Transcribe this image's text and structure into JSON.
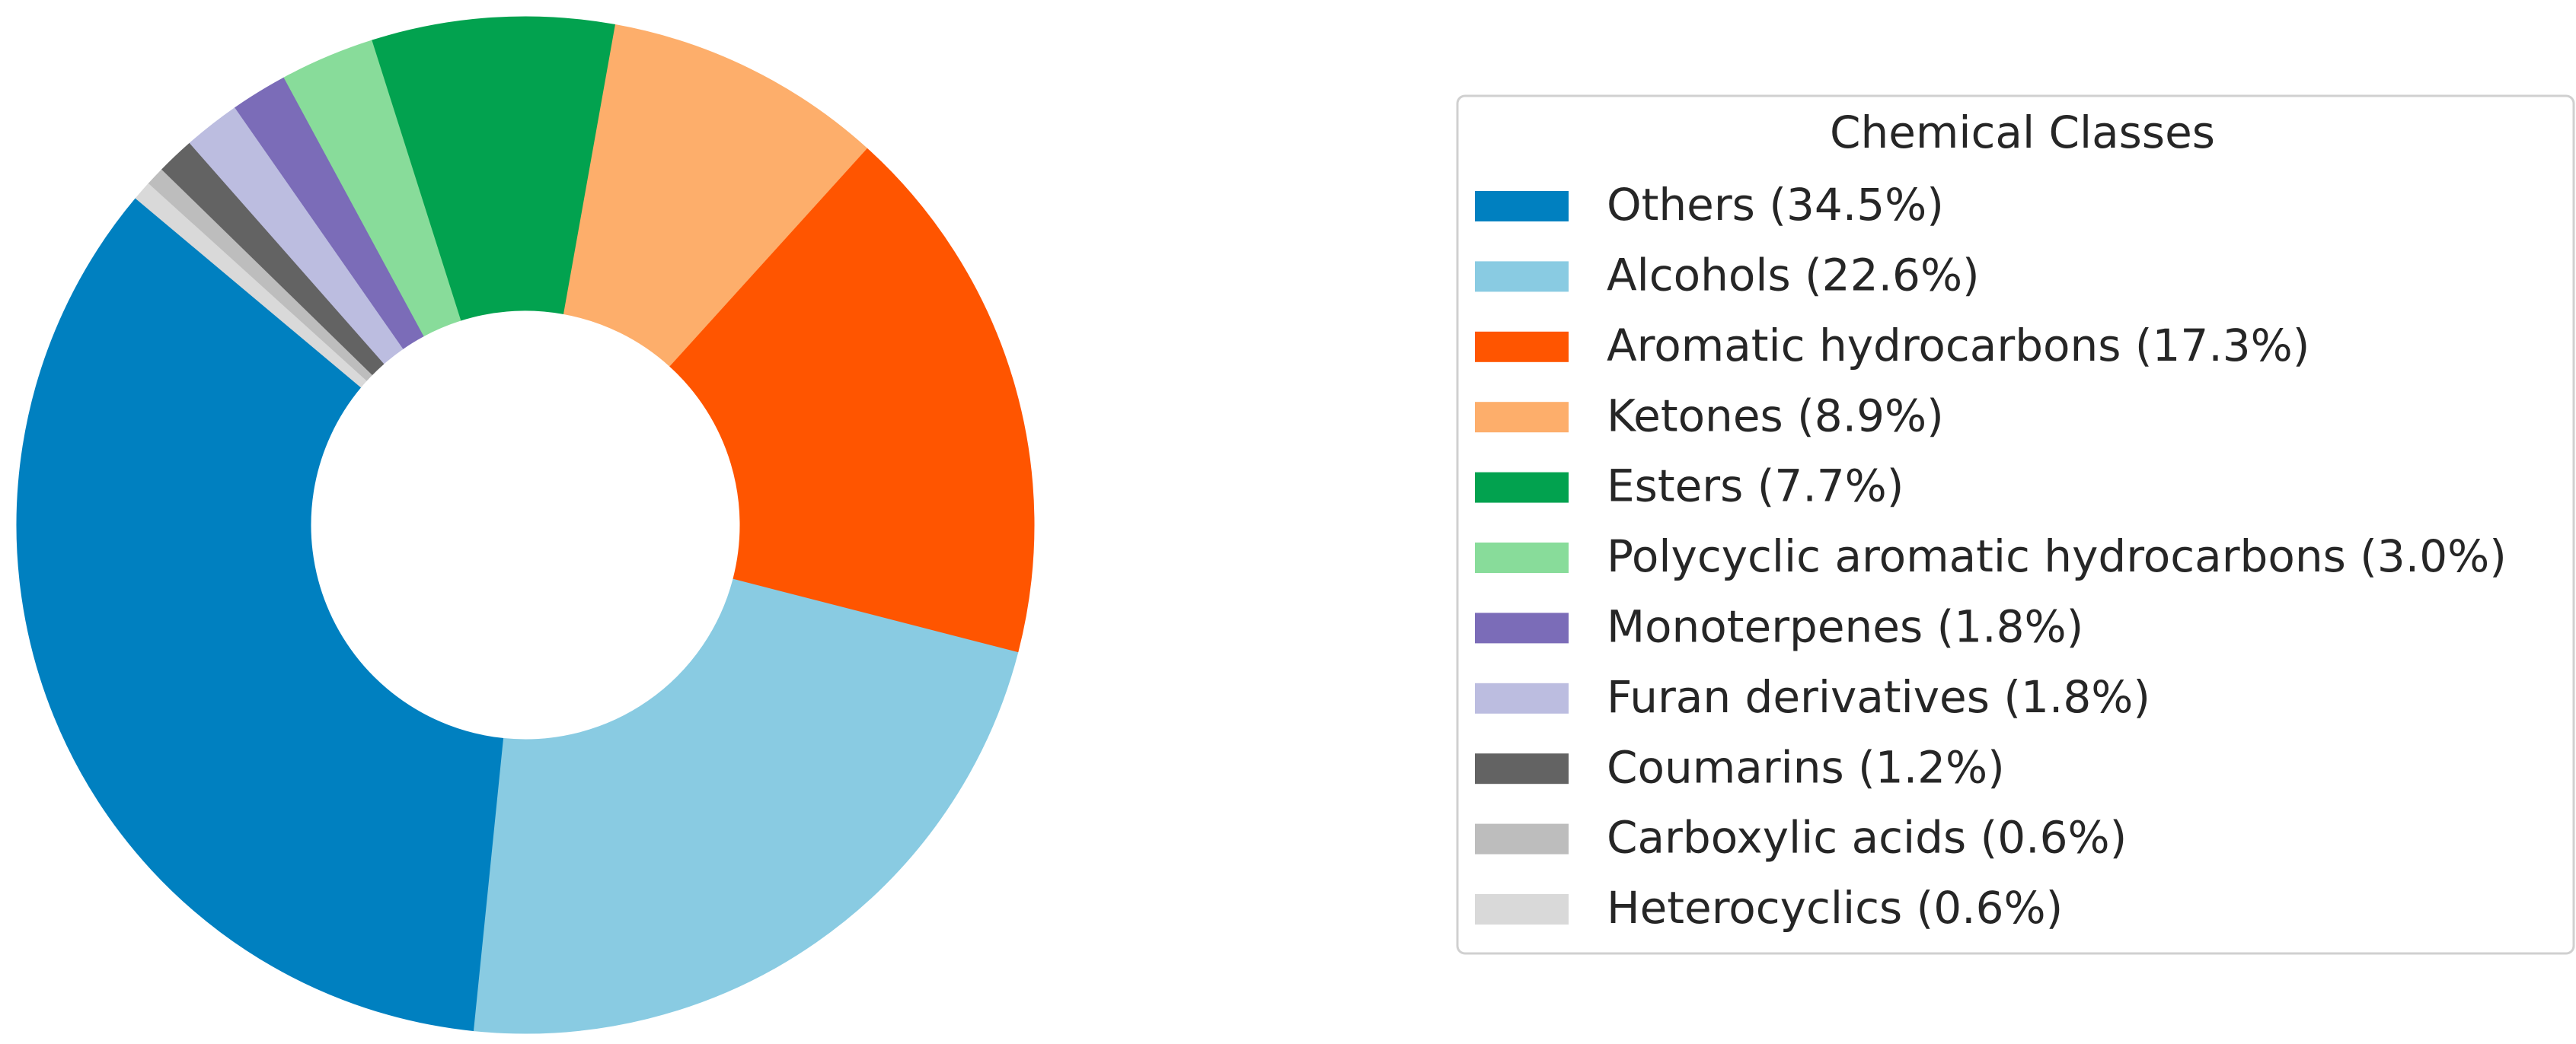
{
  "chart_data": {
    "type": "donut",
    "legend_title": "Chemical Classes",
    "labels": [
      "Others (34.5%)",
      "Alcohols (22.6%)",
      "Aromatic hydrocarbons (17.3%)",
      "Ketones (8.9%)",
      "Esters (7.7%)",
      "Polycyclic aromatic hydrocarbons (3.0%)",
      "Monoterpenes (1.8%)",
      "Furan derivatives (1.8%)",
      "Coumarins (1.2%)",
      "Carboxylic acids (0.6%)",
      "Heterocyclics (0.6%)"
    ],
    "values": [
      34.5,
      22.6,
      17.3,
      8.9,
      7.7,
      3.0,
      1.8,
      1.8,
      1.2,
      0.6,
      0.6
    ],
    "colors": [
      "#0080c0",
      "#89cbe2",
      "#ff5500",
      "#fdae6b",
      "#02a24f",
      "#88dc9a",
      "#7b6cb8",
      "#bcbde0",
      "#636363",
      "#bdbdbd",
      "#d9d9d9"
    ],
    "legend": "right"
  }
}
